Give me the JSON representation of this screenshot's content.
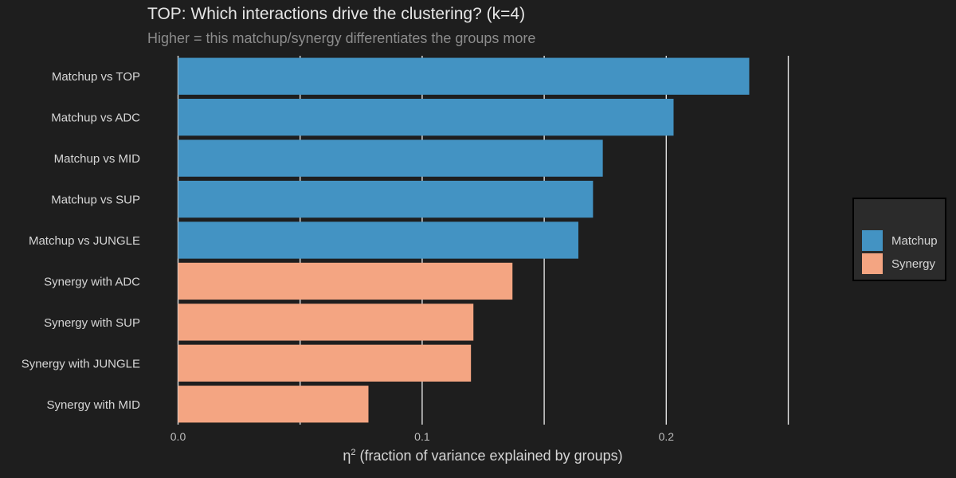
{
  "chart_data": {
    "type": "bar",
    "orientation": "horizontal",
    "title": "TOP: Which interactions drive the clustering? (k=4)",
    "subtitle": "Higher = this matchup/synergy differentiates the groups more",
    "xlabel_symbol": "η",
    "xlabel_superscript": "2",
    "xlabel_text": " (fraction of variance explained by groups)",
    "ylabel": "",
    "xlim": [
      0,
      0.25
    ],
    "xticks": [
      0.0,
      0.1,
      0.2
    ],
    "xtick_labels": [
      "0.0",
      "0.1",
      "0.2"
    ],
    "minor_gridlines": [
      0.05,
      0.15,
      0.25
    ],
    "grid": true,
    "categories": [
      "Matchup vs TOP",
      "Matchup vs ADC",
      "Matchup vs MID",
      "Matchup vs SUP",
      "Matchup vs JUNGLE",
      "Synergy with ADC",
      "Synergy with SUP",
      "Synergy with JUNGLE",
      "Synergy with MID"
    ],
    "values": [
      0.234,
      0.203,
      0.174,
      0.17,
      0.164,
      0.137,
      0.121,
      0.12,
      0.078
    ],
    "groups": [
      "Matchup",
      "Matchup",
      "Matchup",
      "Matchup",
      "Matchup",
      "Synergy",
      "Synergy",
      "Synergy",
      "Synergy"
    ],
    "legend": {
      "placement": "right",
      "entries": [
        {
          "name": "Matchup",
          "color": "#4393c3"
        },
        {
          "name": "Synergy",
          "color": "#f4a582"
        }
      ]
    }
  },
  "colors": {
    "background": "#1e1e1e",
    "gridline": "#e0e0e0",
    "text": "#d6d6d6"
  }
}
